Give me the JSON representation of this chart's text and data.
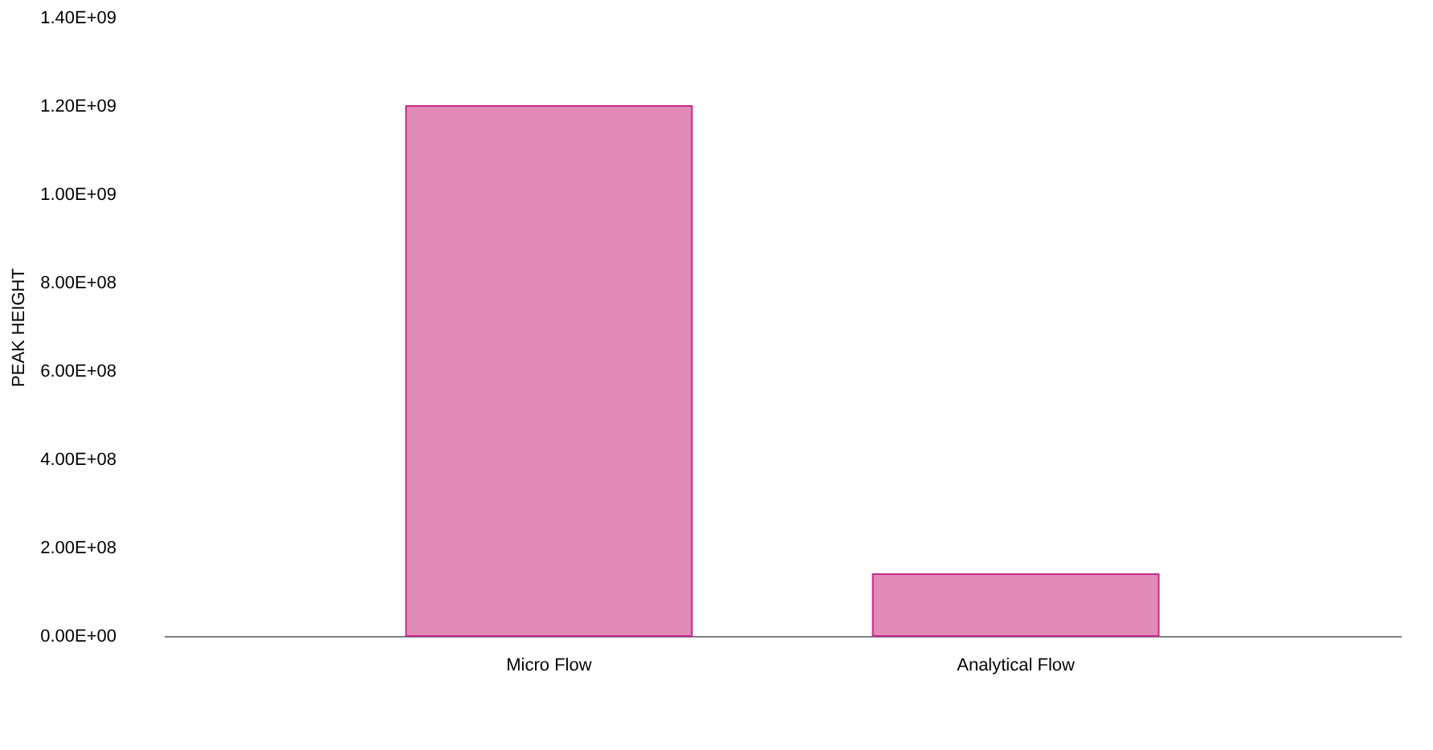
{
  "chart_data": {
    "type": "bar",
    "ylabel": "PEAK HEIGHT",
    "categories": [
      "Micro Flow",
      "Analytical Flow"
    ],
    "values": [
      1200000000.0,
      140000000.0
    ],
    "color": "#e08ab5",
    "ylim": [
      0,
      1400000000.0
    ],
    "yticks": [
      {
        "value": 0,
        "label": "0.00E+00"
      },
      {
        "value": 200000000.0,
        "label": "2.00E+08"
      },
      {
        "value": 400000000.0,
        "label": "4.00E+08"
      },
      {
        "value": 600000000.0,
        "label": "6.00E+08"
      },
      {
        "value": 800000000.0,
        "label": "8.00E+08"
      },
      {
        "value": 1000000000.0,
        "label": "1.00E+09"
      },
      {
        "value": 1200000000.0,
        "label": "1.20E+09"
      },
      {
        "value": 1400000000.0,
        "label": "1.40E+09"
      }
    ],
    "grid": false
  }
}
